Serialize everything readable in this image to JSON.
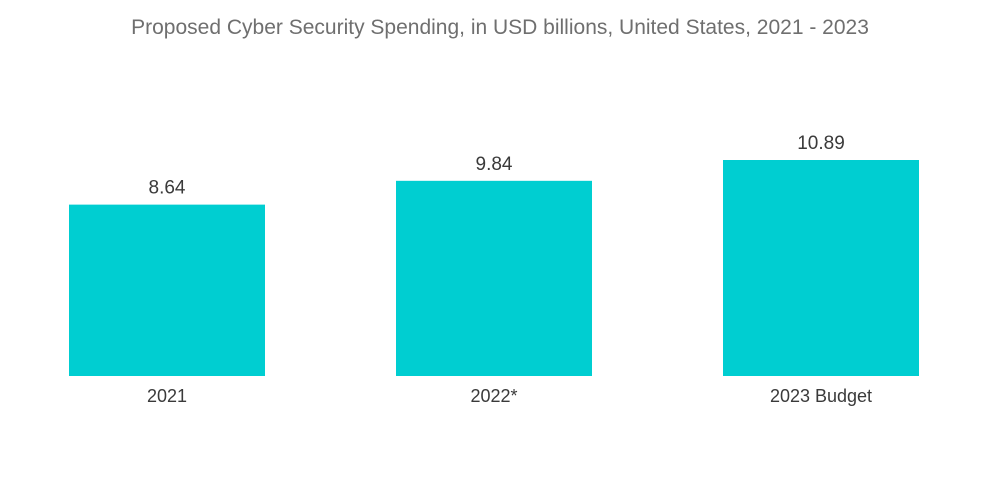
{
  "chart_data": {
    "type": "bar",
    "title": "Proposed Cyber Security Spending, in USD billions, United States, 2021 - 2023",
    "categories": [
      "2021",
      "2022*",
      "2023 Budget"
    ],
    "values": [
      8.64,
      9.84,
      10.89
    ],
    "value_labels": [
      "8.64",
      "9.84",
      "10.89"
    ],
    "xlabel": "",
    "ylabel": "",
    "ylim": [
      0,
      10.89
    ],
    "grid": false,
    "legend": "none",
    "bar_color": "#00CED1"
  }
}
